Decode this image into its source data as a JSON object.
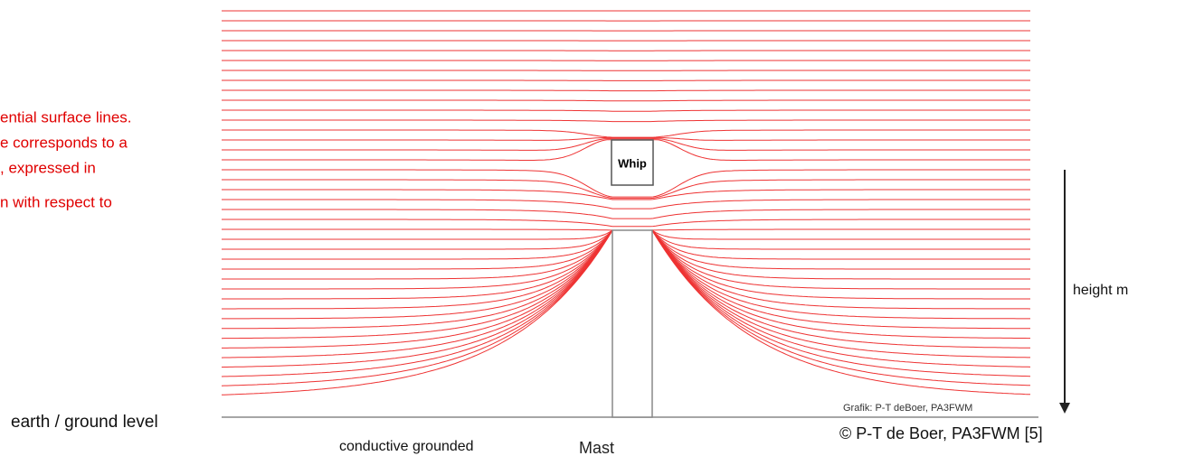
{
  "annotation_lines": [
    "ential surface lines.",
    "e corresponds to a",
    ", expressed in",
    "n with respect to"
  ],
  "whip_label": "Whip",
  "axis_label": "height m",
  "ground_label": "earth / ground level",
  "mast_caption": "conductive grounded",
  "mast_label": "Mast",
  "credit_small": "Grafik: P-T deBoer, PA3FWM",
  "credit": "© P-T de Boer, PA3FWM [5]"
}
